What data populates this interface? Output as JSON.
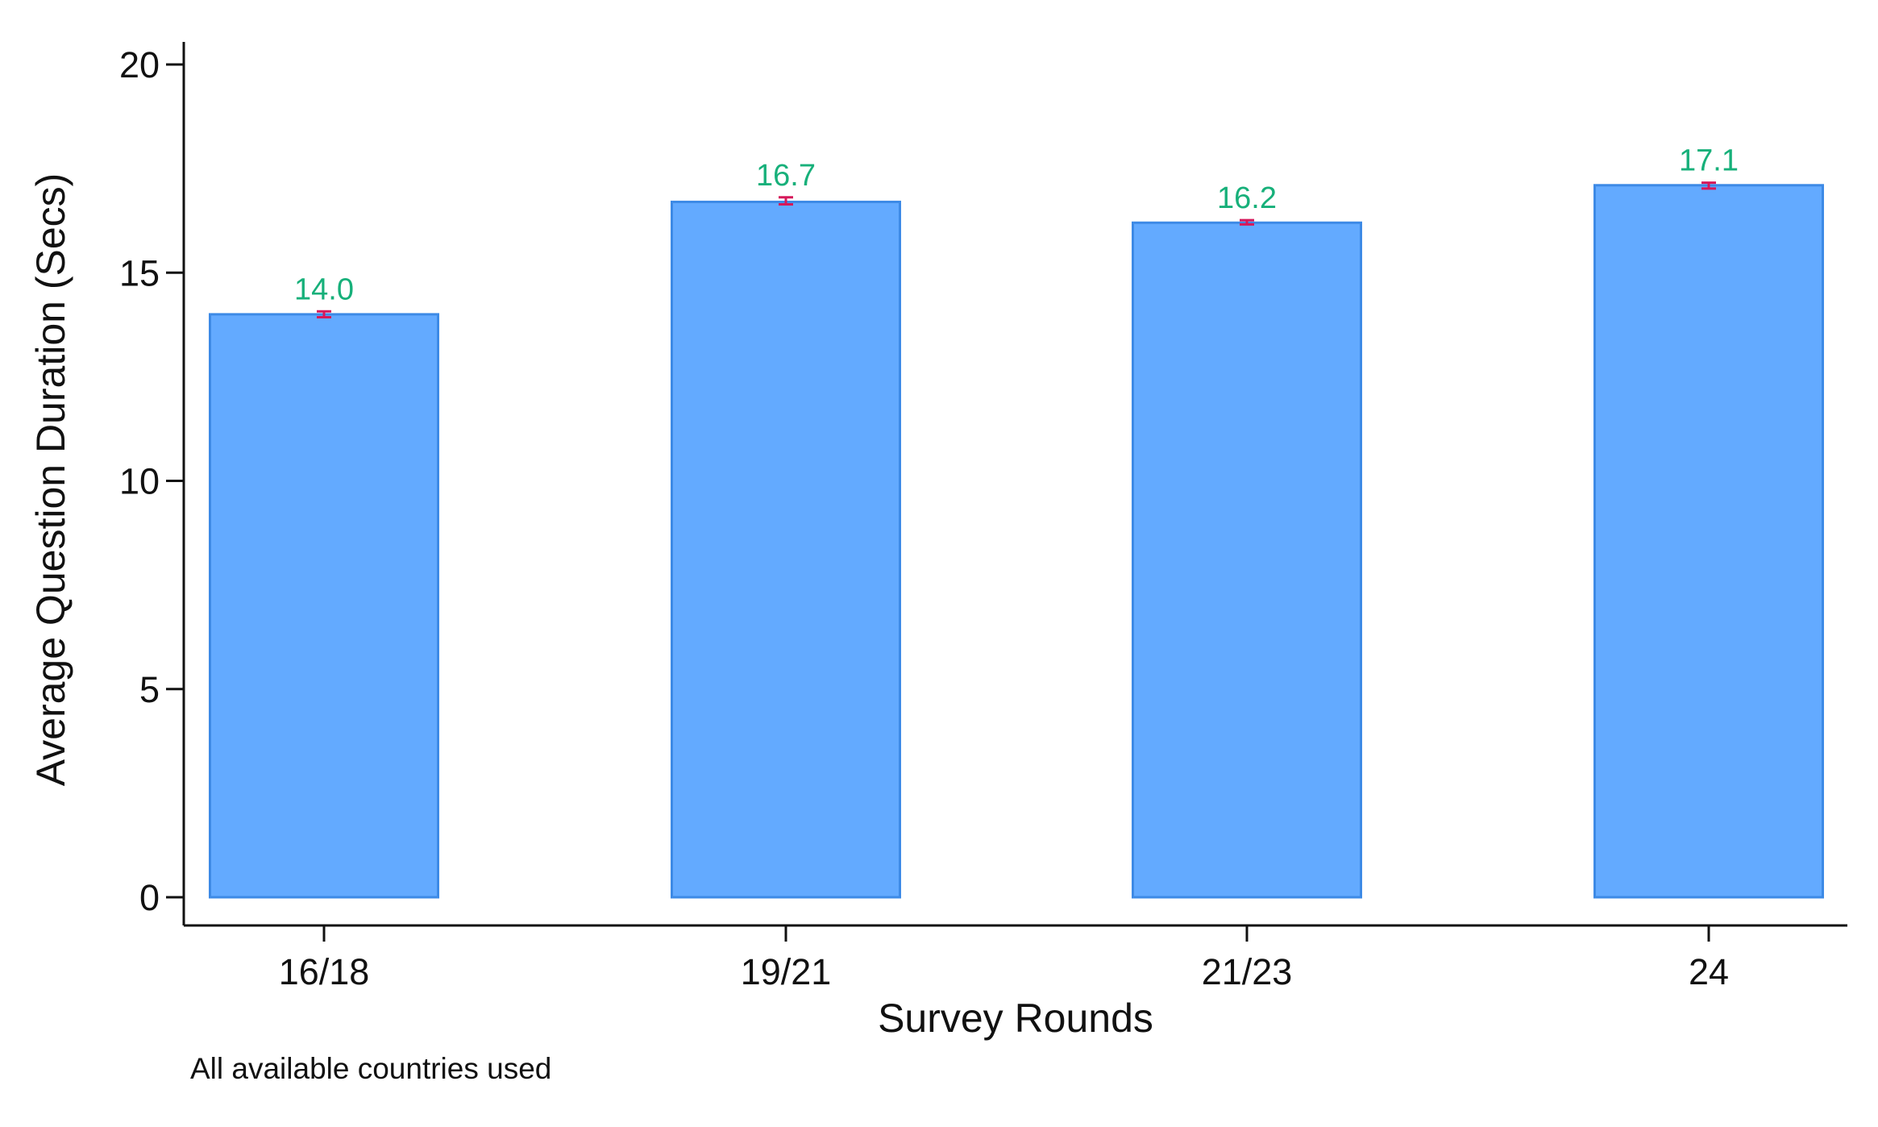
{
  "chart_data": {
    "type": "bar",
    "title": "",
    "xlabel": "Survey Rounds",
    "ylabel": "Average Question Duration (Secs)",
    "note": "All available countries used",
    "categories": [
      "16/18",
      "19/21",
      "21/23",
      "24"
    ],
    "values": [
      14.0,
      16.7,
      16.2,
      17.1
    ],
    "value_labels": [
      "14.0",
      "16.7",
      "16.2",
      "17.1"
    ],
    "error_bars": [
      {
        "low": 13.93,
        "high": 14.07
      },
      {
        "low": 16.64,
        "high": 16.81
      },
      {
        "low": 16.16,
        "high": 16.26
      },
      {
        "low": 17.02,
        "high": 17.16
      }
    ],
    "ylim": [
      0,
      20
    ],
    "yticks": [
      0,
      5,
      10,
      15,
      20
    ],
    "ytick_labels": [
      "0",
      "5",
      "10",
      "15",
      "20"
    ],
    "grid": false,
    "legend": "none",
    "colors": {
      "bar_fill": "#63aaff",
      "bar_edge": "#3d8ae6",
      "error_bar": "#d6185a",
      "data_label": "#17b07a",
      "axis": "#111111"
    }
  }
}
